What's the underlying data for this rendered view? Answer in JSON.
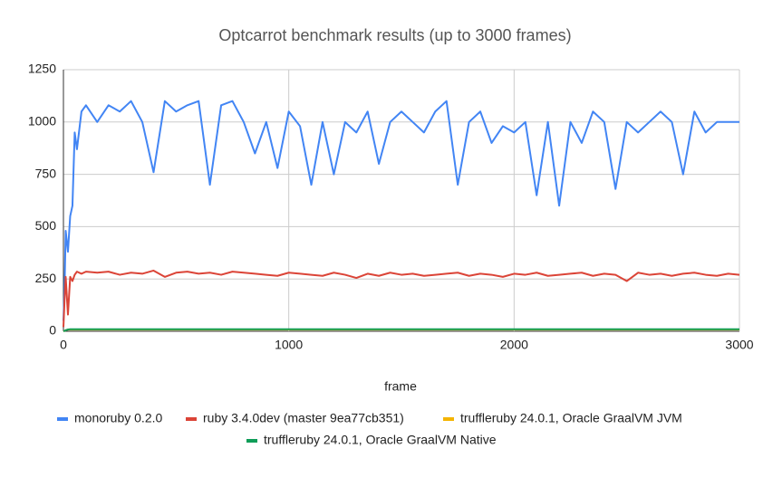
{
  "chart_data": {
    "type": "line",
    "title": "Optcarrot benchmark results (up to 3000 frames)",
    "xlabel": "frame",
    "x": [
      0,
      5,
      10,
      20,
      30,
      40,
      50,
      60,
      80,
      100,
      150,
      200,
      250,
      300,
      350,
      400,
      450,
      500,
      550,
      600,
      650,
      700,
      750,
      800,
      850,
      900,
      950,
      1000,
      1050,
      1100,
      1150,
      1200,
      1250,
      1300,
      1350,
      1400,
      1450,
      1500,
      1550,
      1600,
      1650,
      1700,
      1750,
      1800,
      1850,
      1900,
      1950,
      2000,
      2050,
      2100,
      2150,
      2200,
      2250,
      2300,
      2350,
      2400,
      2450,
      2500,
      2550,
      2600,
      2650,
      2700,
      2750,
      2800,
      2850,
      2900,
      2950,
      3000
    ],
    "series": [
      {
        "name": "monoruby 0.2.0",
        "color": "#4285f4",
        "values": [
          50,
          200,
          480,
          380,
          550,
          600,
          950,
          870,
          1050,
          1080,
          1000,
          1080,
          1050,
          1100,
          1000,
          760,
          1100,
          1050,
          1080,
          1100,
          700,
          1080,
          1100,
          1000,
          850,
          1000,
          780,
          1050,
          980,
          700,
          1000,
          750,
          1000,
          950,
          1050,
          800,
          1000,
          1050,
          1000,
          950,
          1050,
          1100,
          700,
          1000,
          1050,
          900,
          980,
          950,
          1000,
          650,
          1000,
          600,
          1000,
          900,
          1050,
          1000,
          680,
          1000,
          950,
          1000,
          1050,
          1000,
          750,
          1050,
          950,
          1000,
          1000,
          1000
        ]
      },
      {
        "name": "ruby 3.4.0dev (master 9ea77cb351)",
        "color": "#db4437",
        "values": [
          20,
          150,
          260,
          80,
          260,
          240,
          270,
          285,
          275,
          285,
          280,
          285,
          270,
          280,
          275,
          290,
          260,
          280,
          285,
          275,
          280,
          270,
          285,
          280,
          275,
          270,
          265,
          280,
          275,
          270,
          265,
          280,
          270,
          255,
          275,
          265,
          280,
          270,
          275,
          265,
          270,
          275,
          280,
          265,
          275,
          270,
          260,
          275,
          270,
          280,
          265,
          270,
          275,
          280,
          265,
          275,
          270,
          240,
          280,
          270,
          275,
          265,
          275,
          280,
          270,
          265,
          275,
          270
        ]
      },
      {
        "name": "truffleruby 24.0.1, Oracle GraalVM JVM",
        "color": "#f4b400",
        "values": [
          0,
          2,
          5,
          8,
          8,
          8,
          8,
          8,
          8,
          8,
          8,
          8,
          8,
          8,
          8,
          8,
          8,
          8,
          8,
          8,
          8,
          8,
          8,
          8,
          8,
          8,
          8,
          8,
          8,
          8,
          8,
          8,
          8,
          8,
          8,
          8,
          8,
          8,
          8,
          8,
          8,
          8,
          8,
          8,
          8,
          8,
          8,
          8,
          8,
          8,
          8,
          8,
          8,
          8,
          8,
          8,
          8,
          8,
          8,
          8,
          8,
          8,
          8,
          8,
          8,
          8,
          8,
          8
        ]
      },
      {
        "name": "truffleruby 24.0.1, Oracle GraalVM Native",
        "color": "#0f9d58",
        "values": [
          0,
          2,
          5,
          8,
          10,
          10,
          10,
          10,
          10,
          10,
          10,
          10,
          10,
          10,
          10,
          10,
          10,
          10,
          10,
          10,
          10,
          10,
          10,
          10,
          10,
          10,
          10,
          10,
          10,
          10,
          10,
          10,
          10,
          10,
          10,
          10,
          10,
          10,
          10,
          10,
          10,
          10,
          10,
          10,
          10,
          10,
          10,
          10,
          10,
          10,
          10,
          10,
          10,
          10,
          10,
          10,
          10,
          10,
          10,
          10,
          10,
          10,
          10,
          10,
          10,
          10,
          10,
          10
        ]
      }
    ],
    "xlim": [
      0,
      3000
    ],
    "xticks": [
      0,
      1000,
      2000,
      3000
    ],
    "ylim": [
      0,
      1250
    ],
    "yticks": [
      0,
      250,
      500,
      750,
      1000,
      1250
    ],
    "grid": true,
    "legend": "bottom"
  }
}
